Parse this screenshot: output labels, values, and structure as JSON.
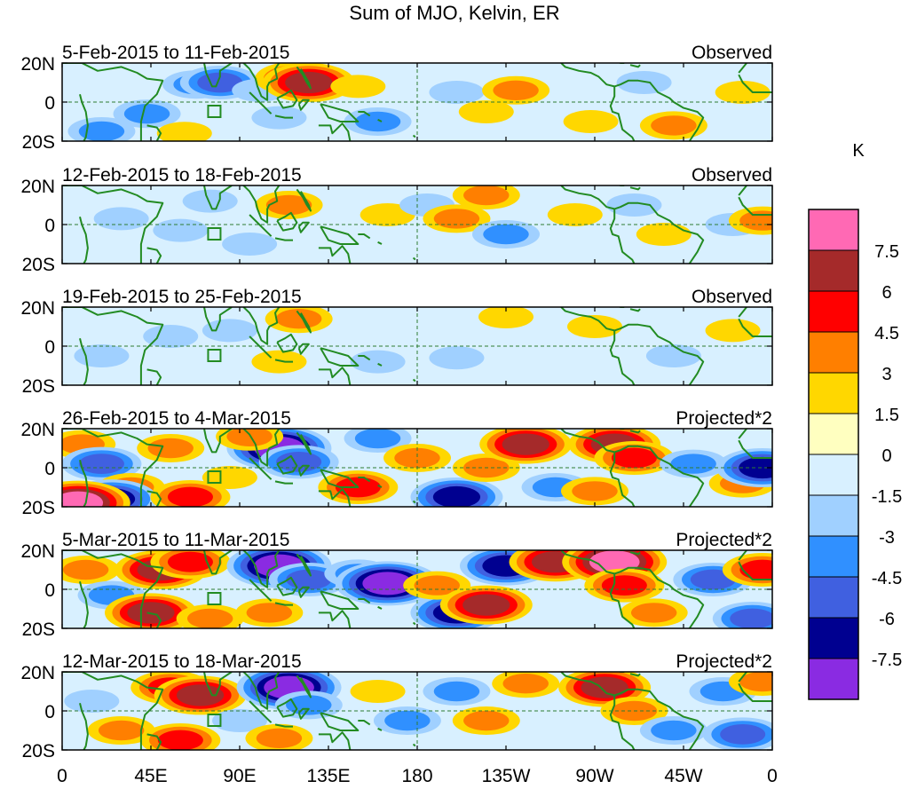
{
  "chart_data": {
    "type": "heatmap",
    "title": "Sum of MJO, Kelvin, ER",
    "units": "K",
    "xlim": [
      0,
      360
    ],
    "ylim": [
      -20,
      20
    ],
    "x_ticks": [
      {
        "lon": 0,
        "label": "0"
      },
      {
        "lon": 45,
        "label": "45E"
      },
      {
        "lon": 90,
        "label": "90E"
      },
      {
        "lon": 135,
        "label": "135E"
      },
      {
        "lon": 180,
        "label": "180"
      },
      {
        "lon": 225,
        "label": "135W"
      },
      {
        "lon": 270,
        "label": "90W"
      },
      {
        "lon": 315,
        "label": "45W"
      },
      {
        "lon": 360,
        "label": "0"
      }
    ],
    "y_ticks": [
      {
        "lat": 20,
        "label": "20N"
      },
      {
        "lat": 0,
        "label": "0"
      },
      {
        "lat": -20,
        "label": "20S"
      }
    ],
    "levels": [
      "7.5",
      "6",
      "4.5",
      "3",
      "1.5",
      "0",
      "-1.5",
      "-3",
      "-4.5",
      "-6",
      "-7.5"
    ],
    "colors": [
      "#ff69b4",
      "#a52a2a",
      "#ff0000",
      "#ff7f00",
      "#ffd700",
      "#ffffc0",
      "#d8f0ff",
      "#a0d0ff",
      "#3090ff",
      "#4060e0",
      "#000090",
      "#8a2be2"
    ],
    "panels": [
      {
        "date": "5-Feb-2015 to 11-Feb-2015",
        "kind": "Observed",
        "anomalies": [
          {
            "lon": 43,
            "lat": -6,
            "v": -3
          },
          {
            "lon": 68,
            "lat": 9,
            "v": -3
          },
          {
            "lon": 80,
            "lat": 10,
            "v": -4.5
          },
          {
            "lon": 62,
            "lat": -16,
            "v": 1.5
          },
          {
            "lon": 100,
            "lat": 6,
            "v": -1.5
          },
          {
            "lon": 118,
            "lat": 12,
            "v": 4.5
          },
          {
            "lon": 125,
            "lat": 10,
            "v": 6
          },
          {
            "lon": 150,
            "lat": 8,
            "v": 1.5
          },
          {
            "lon": 110,
            "lat": -8,
            "v": -1.5
          },
          {
            "lon": 160,
            "lat": -10,
            "v": -3
          },
          {
            "lon": 200,
            "lat": 5,
            "v": -1.5
          },
          {
            "lon": 230,
            "lat": 6,
            "v": 3
          },
          {
            "lon": 215,
            "lat": -5,
            "v": 1.5
          },
          {
            "lon": 268,
            "lat": -10,
            "v": 1.5
          },
          {
            "lon": 295,
            "lat": 10,
            "v": -1.5
          },
          {
            "lon": 310,
            "lat": -12,
            "v": 3
          },
          {
            "lon": 345,
            "lat": 5,
            "v": 1.5
          },
          {
            "lon": 20,
            "lat": -15,
            "v": -3
          }
        ]
      },
      {
        "date": "12-Feb-2015 to 18-Feb-2015",
        "kind": "Observed",
        "anomalies": [
          {
            "lon": 30,
            "lat": 3,
            "v": -1.5
          },
          {
            "lon": 60,
            "lat": -3,
            "v": -1.5
          },
          {
            "lon": 75,
            "lat": 12,
            "v": -1.5
          },
          {
            "lon": 115,
            "lat": 10,
            "v": 3
          },
          {
            "lon": 95,
            "lat": -10,
            "v": -1.5
          },
          {
            "lon": 165,
            "lat": 5,
            "v": 1.5
          },
          {
            "lon": 185,
            "lat": 10,
            "v": -1.5
          },
          {
            "lon": 200,
            "lat": 3,
            "v": 3
          },
          {
            "lon": 225,
            "lat": -5,
            "v": -3
          },
          {
            "lon": 215,
            "lat": 15,
            "v": 3
          },
          {
            "lon": 260,
            "lat": 5,
            "v": 1.5
          },
          {
            "lon": 290,
            "lat": 10,
            "v": -1.5
          },
          {
            "lon": 305,
            "lat": -5,
            "v": 1.5
          },
          {
            "lon": 340,
            "lat": 0,
            "v": -1.5
          },
          {
            "lon": 355,
            "lat": 2,
            "v": 3
          }
        ]
      },
      {
        "date": "19-Feb-2015 to 25-Feb-2015",
        "kind": "Observed",
        "anomalies": [
          {
            "lon": 20,
            "lat": -5,
            "v": -1.5
          },
          {
            "lon": 55,
            "lat": 5,
            "v": -1.5
          },
          {
            "lon": 85,
            "lat": 8,
            "v": -1.5
          },
          {
            "lon": 120,
            "lat": 14,
            "v": 3
          },
          {
            "lon": 110,
            "lat": -8,
            "v": 1.5
          },
          {
            "lon": 160,
            "lat": -8,
            "v": -1.5
          },
          {
            "lon": 200,
            "lat": -6,
            "v": -1.5
          },
          {
            "lon": 225,
            "lat": 15,
            "v": 1.5
          },
          {
            "lon": 270,
            "lat": 10,
            "v": 1.5
          },
          {
            "lon": 310,
            "lat": -5,
            "v": -1.5
          },
          {
            "lon": 340,
            "lat": 8,
            "v": 1.5
          }
        ]
      },
      {
        "date": "26-Feb-2015 to 4-Mar-2015",
        "kind": "Projected*2",
        "anomalies": [
          {
            "lon": 10,
            "lat": 12,
            "v": 3
          },
          {
            "lon": 20,
            "lat": 2,
            "v": -4.5
          },
          {
            "lon": 35,
            "lat": -10,
            "v": 3
          },
          {
            "lon": 25,
            "lat": -16,
            "v": -6
          },
          {
            "lon": 55,
            "lat": 10,
            "v": 3
          },
          {
            "lon": 65,
            "lat": -15,
            "v": 4.5
          },
          {
            "lon": 85,
            "lat": -5,
            "v": 1.5
          },
          {
            "lon": 110,
            "lat": 10,
            "v": -7.5
          },
          {
            "lon": 120,
            "lat": 3,
            "v": -4.5
          },
          {
            "lon": 95,
            "lat": 16,
            "v": 3
          },
          {
            "lon": 150,
            "lat": -10,
            "v": 4.5
          },
          {
            "lon": 160,
            "lat": 15,
            "v": -3
          },
          {
            "lon": 180,
            "lat": 5,
            "v": 3
          },
          {
            "lon": 200,
            "lat": -15,
            "v": -6
          },
          {
            "lon": 215,
            "lat": 0,
            "v": 3
          },
          {
            "lon": 235,
            "lat": 12,
            "v": 6
          },
          {
            "lon": 250,
            "lat": -10,
            "v": -3
          },
          {
            "lon": 280,
            "lat": 12,
            "v": 6
          },
          {
            "lon": 290,
            "lat": 5,
            "v": 4.5
          },
          {
            "lon": 270,
            "lat": -12,
            "v": 3
          },
          {
            "lon": 320,
            "lat": 2,
            "v": -3
          },
          {
            "lon": 345,
            "lat": -8,
            "v": 3
          },
          {
            "lon": 355,
            "lat": 0,
            "v": -6
          },
          {
            "lon": 8,
            "lat": -18,
            "v": 7.5
          }
        ]
      },
      {
        "date": "5-Mar-2015 to 11-Mar-2015",
        "kind": "Projected*2",
        "anomalies": [
          {
            "lon": 12,
            "lat": 10,
            "v": 3
          },
          {
            "lon": 25,
            "lat": -3,
            "v": -3
          },
          {
            "lon": 50,
            "lat": 10,
            "v": 6
          },
          {
            "lon": 65,
            "lat": 14,
            "v": 4.5
          },
          {
            "lon": 45,
            "lat": -12,
            "v": 6
          },
          {
            "lon": 75,
            "lat": -15,
            "v": 3
          },
          {
            "lon": 110,
            "lat": 12,
            "v": -7.5
          },
          {
            "lon": 125,
            "lat": 5,
            "v": -4.5
          },
          {
            "lon": 105,
            "lat": -12,
            "v": 3
          },
          {
            "lon": 150,
            "lat": 8,
            "v": -3
          },
          {
            "lon": 165,
            "lat": 3,
            "v": -7.5
          },
          {
            "lon": 200,
            "lat": -12,
            "v": -6
          },
          {
            "lon": 190,
            "lat": 2,
            "v": 3
          },
          {
            "lon": 215,
            "lat": -8,
            "v": 6
          },
          {
            "lon": 225,
            "lat": 12,
            "v": -6
          },
          {
            "lon": 250,
            "lat": 14,
            "v": 6
          },
          {
            "lon": 280,
            "lat": 14,
            "v": 7.5
          },
          {
            "lon": 285,
            "lat": 2,
            "v": 4.5
          },
          {
            "lon": 300,
            "lat": -12,
            "v": 3
          },
          {
            "lon": 330,
            "lat": 5,
            "v": -4.5
          },
          {
            "lon": 355,
            "lat": 10,
            "v": 4.5
          },
          {
            "lon": 350,
            "lat": -15,
            "v": -4.5
          }
        ]
      },
      {
        "date": "12-Mar-2015 to 18-Mar-2015",
        "kind": "Projected*2",
        "anomalies": [
          {
            "lon": 15,
            "lat": 5,
            "v": -1.5
          },
          {
            "lon": 30,
            "lat": -10,
            "v": 3
          },
          {
            "lon": 55,
            "lat": 12,
            "v": 4.5
          },
          {
            "lon": 70,
            "lat": 8,
            "v": 6
          },
          {
            "lon": 60,
            "lat": -15,
            "v": 4.5
          },
          {
            "lon": 90,
            "lat": -5,
            "v": -1.5
          },
          {
            "lon": 115,
            "lat": 12,
            "v": -7.5
          },
          {
            "lon": 125,
            "lat": 3,
            "v": -3
          },
          {
            "lon": 110,
            "lat": -14,
            "v": 3
          },
          {
            "lon": 160,
            "lat": 10,
            "v": 1.5
          },
          {
            "lon": 175,
            "lat": -5,
            "v": -3
          },
          {
            "lon": 200,
            "lat": 10,
            "v": -3
          },
          {
            "lon": 215,
            "lat": -5,
            "v": 3
          },
          {
            "lon": 235,
            "lat": 14,
            "v": 3
          },
          {
            "lon": 275,
            "lat": 12,
            "v": 6
          },
          {
            "lon": 290,
            "lat": 0,
            "v": 3
          },
          {
            "lon": 310,
            "lat": -10,
            "v": -3
          },
          {
            "lon": 335,
            "lat": 10,
            "v": -3
          },
          {
            "lon": 355,
            "lat": 15,
            "v": 3
          },
          {
            "lon": 345,
            "lat": -12,
            "v": -4.5
          }
        ]
      }
    ]
  }
}
